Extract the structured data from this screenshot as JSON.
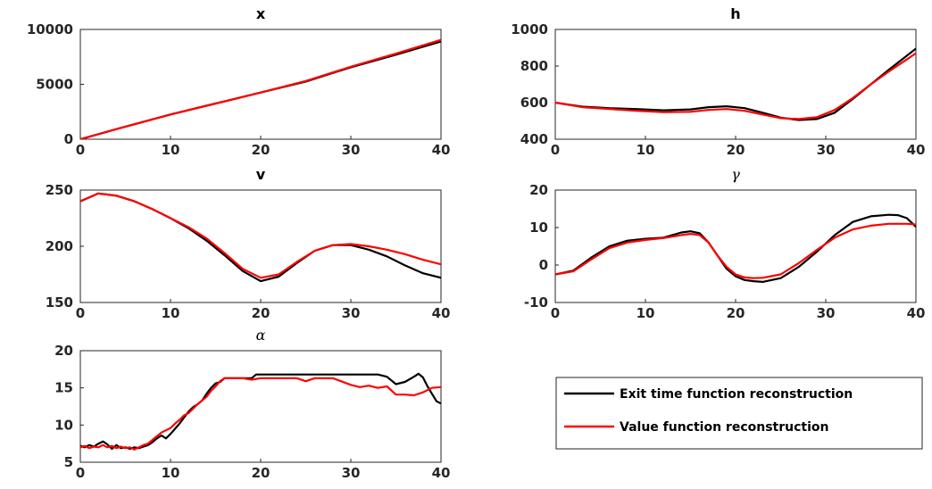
{
  "colors": {
    "exit_time": "#000000",
    "value_fn": "#ff0000",
    "axis": "#262626"
  },
  "legend": {
    "entries": [
      {
        "label": "Exit time function reconstruction",
        "color": "#000000"
      },
      {
        "label": "Value function reconstruction",
        "color": "#ff0000"
      }
    ]
  },
  "chart_data": [
    {
      "id": "x",
      "type": "line",
      "title": "x",
      "title_style": "bold",
      "xlim": [
        0,
        40
      ],
      "ylim": [
        0,
        10000
      ],
      "xticks": [
        0,
        10,
        20,
        30,
        40
      ],
      "yticks": [
        0,
        5000,
        10000
      ],
      "series": [
        {
          "label": "Exit time function reconstruction",
          "color": "#000000",
          "x": [
            0,
            5,
            10,
            15,
            20,
            25,
            30,
            35,
            40
          ],
          "y": [
            0,
            1150,
            2250,
            3250,
            4250,
            5250,
            6550,
            7700,
            8900
          ]
        },
        {
          "label": "Value function reconstruction",
          "color": "#ff0000",
          "x": [
            0,
            5,
            10,
            15,
            20,
            25,
            30,
            35,
            40
          ],
          "y": [
            0,
            1150,
            2250,
            3250,
            4250,
            5300,
            6600,
            7800,
            9050
          ]
        }
      ]
    },
    {
      "id": "h",
      "type": "line",
      "title": "h",
      "title_style": "bold",
      "xlim": [
        0,
        40
      ],
      "ylim": [
        400,
        1000
      ],
      "xticks": [
        0,
        10,
        20,
        30,
        40
      ],
      "yticks": [
        400,
        600,
        800,
        1000
      ],
      "series": [
        {
          "label": "Exit time function reconstruction",
          "color": "#000000",
          "x": [
            0,
            3,
            6,
            9,
            12,
            15,
            17,
            19,
            21,
            23,
            25,
            27,
            29,
            31,
            33,
            35,
            37,
            40
          ],
          "y": [
            600,
            578,
            570,
            565,
            558,
            563,
            575,
            580,
            570,
            545,
            518,
            505,
            510,
            545,
            620,
            700,
            780,
            895
          ]
        },
        {
          "label": "Value function reconstruction",
          "color": "#ff0000",
          "x": [
            0,
            3,
            6,
            9,
            12,
            15,
            17,
            19,
            21,
            23,
            25,
            27,
            29,
            31,
            33,
            35,
            37,
            40
          ],
          "y": [
            600,
            575,
            565,
            555,
            548,
            550,
            560,
            565,
            555,
            535,
            515,
            510,
            520,
            560,
            625,
            700,
            770,
            870
          ]
        }
      ]
    },
    {
      "id": "v",
      "type": "line",
      "title": "v",
      "title_style": "bold",
      "xlim": [
        0,
        40
      ],
      "ylim": [
        150,
        250
      ],
      "xticks": [
        0,
        10,
        20,
        30,
        40
      ],
      "yticks": [
        150,
        200,
        250
      ],
      "series": [
        {
          "label": "Exit time function reconstruction",
          "color": "#000000",
          "x": [
            0,
            2,
            4,
            6,
            8,
            10,
            12,
            14,
            16,
            18,
            20,
            22,
            24,
            26,
            28,
            30,
            32,
            34,
            36,
            38,
            40
          ],
          "y": [
            240,
            247,
            245,
            240,
            233,
            225,
            216,
            205,
            192,
            178,
            169,
            173,
            185,
            196,
            201,
            201,
            197,
            191,
            183,
            176,
            172
          ]
        },
        {
          "label": "Value function reconstruction",
          "color": "#ff0000",
          "x": [
            0,
            2,
            4,
            6,
            8,
            10,
            12,
            14,
            16,
            18,
            20,
            22,
            24,
            26,
            28,
            30,
            32,
            34,
            36,
            38,
            40
          ],
          "y": [
            240,
            247,
            245,
            240,
            233,
            225,
            217,
            207,
            194,
            180,
            172,
            175,
            186,
            196,
            201,
            202,
            200,
            197,
            193,
            188,
            184
          ]
        }
      ]
    },
    {
      "id": "gamma",
      "type": "line",
      "title": "γ",
      "title_style": "greek",
      "xlim": [
        0,
        40
      ],
      "ylim": [
        -10,
        20
      ],
      "xticks": [
        0,
        10,
        20,
        30,
        40
      ],
      "yticks": [
        -10,
        0,
        10,
        20
      ],
      "series": [
        {
          "label": "Exit time function reconstruction",
          "color": "#000000",
          "x": [
            0,
            2,
            4,
            6,
            8,
            10,
            12,
            14,
            15,
            16,
            17,
            18,
            19,
            20,
            21,
            22,
            23,
            25,
            27,
            29,
            31,
            33,
            35,
            37,
            38,
            39,
            40
          ],
          "y": [
            -2.5,
            -1.5,
            2,
            5,
            6.5,
            7,
            7.3,
            8.7,
            9,
            8.5,
            6,
            2.5,
            -1,
            -3,
            -4,
            -4.3,
            -4.5,
            -3.5,
            -0.5,
            3.5,
            8,
            11.5,
            13,
            13.4,
            13.3,
            12.5,
            10.2
          ]
        },
        {
          "label": "Value function reconstruction",
          "color": "#ff0000",
          "x": [
            0,
            2,
            4,
            6,
            8,
            10,
            12,
            14,
            15,
            16,
            17,
            18,
            19,
            20,
            21,
            22,
            23,
            25,
            27,
            29,
            31,
            33,
            35,
            37,
            38,
            39,
            40
          ],
          "y": [
            -2.5,
            -1.7,
            1.5,
            4.5,
            6,
            6.7,
            7.2,
            8,
            8.3,
            8,
            6,
            2.5,
            -0.5,
            -2.5,
            -3.3,
            -3.5,
            -3.4,
            -2.5,
            0.5,
            4,
            7.3,
            9.5,
            10.5,
            11,
            11,
            11,
            10.8
          ]
        }
      ]
    },
    {
      "id": "alpha",
      "type": "line",
      "title": "α",
      "title_style": "greek",
      "xlim": [
        0,
        40
      ],
      "ylim": [
        5,
        20
      ],
      "xticks": [
        0,
        10,
        20,
        30,
        40
      ],
      "yticks": [
        5,
        10,
        15,
        20
      ],
      "series": [
        {
          "label": "Exit time function reconstruction",
          "color": "#000000",
          "x": [
            0,
            0.5,
            1,
            1.5,
            2,
            2.5,
            3,
            3.5,
            4,
            4.5,
            5,
            5.5,
            6,
            6.5,
            7,
            7.5,
            8,
            8.5,
            9,
            9.5,
            10,
            10.5,
            11,
            11.5,
            12,
            12.5,
            13,
            13.5,
            14,
            14.5,
            15,
            15.5,
            16,
            17,
            18,
            19,
            19.5,
            20,
            22,
            25,
            28,
            31,
            33,
            34,
            35,
            36,
            37,
            37.5,
            38,
            38.5,
            39,
            39.5,
            40
          ],
          "y": [
            7.2,
            7.0,
            7.3,
            7.1,
            7.5,
            7.8,
            7.4,
            6.8,
            7.3,
            6.9,
            7.0,
            6.8,
            7.0,
            6.9,
            7.1,
            7.3,
            7.7,
            8.2,
            8.6,
            8.2,
            8.8,
            9.5,
            10.2,
            11.0,
            11.8,
            12.4,
            12.8,
            13.3,
            14.2,
            15.0,
            15.6,
            15.8,
            16.3,
            16.3,
            16.3,
            16.3,
            16.8,
            16.8,
            16.8,
            16.8,
            16.8,
            16.8,
            16.8,
            16.5,
            15.5,
            15.8,
            16.5,
            16.9,
            16.4,
            15.2,
            14.2,
            13.2,
            12.9
          ]
        },
        {
          "label": "Value function reconstruction",
          "color": "#ff0000",
          "x": [
            0,
            0.5,
            1,
            1.5,
            2,
            2.5,
            3,
            3.5,
            4,
            4.5,
            5,
            5.5,
            6,
            6.5,
            7,
            7.5,
            8,
            8.5,
            9,
            9.5,
            10,
            10.5,
            11,
            11.5,
            12,
            12.5,
            13,
            13.5,
            14,
            14.5,
            15,
            15.5,
            16,
            17,
            18,
            19,
            20,
            22,
            24,
            25,
            26,
            28,
            30,
            31,
            32,
            33,
            34,
            35,
            36,
            37,
            38,
            39,
            40
          ],
          "y": [
            7.0,
            7.2,
            6.9,
            7.1,
            7.0,
            7.3,
            7.0,
            7.2,
            6.9,
            7.1,
            6.9,
            7.0,
            6.7,
            7.0,
            7.3,
            7.5,
            8.0,
            8.5,
            9.0,
            9.3,
            9.6,
            10.2,
            10.7,
            11.3,
            11.6,
            12.2,
            12.8,
            13.3,
            13.8,
            14.6,
            15.2,
            15.9,
            16.3,
            16.3,
            16.3,
            16.1,
            16.3,
            16.3,
            16.3,
            15.9,
            16.3,
            16.3,
            15.4,
            15.1,
            15.3,
            15.0,
            15.2,
            14.1,
            14.1,
            14.0,
            14.4,
            15.0,
            15.1
          ]
        }
      ]
    }
  ]
}
